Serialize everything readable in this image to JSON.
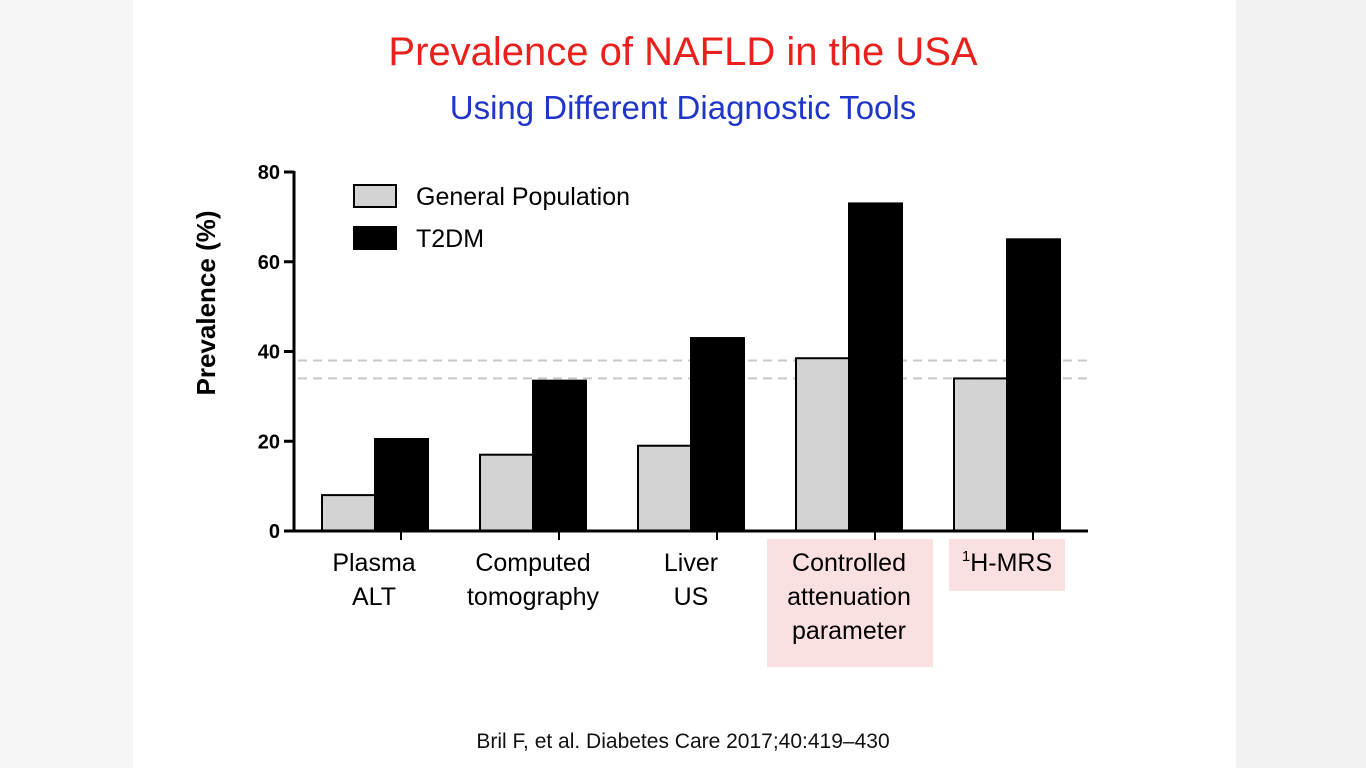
{
  "title": "Prevalence of NAFLD in the USA",
  "subtitle": "Using Different Diagnostic Tools",
  "citation": "Bril F, et al. Diabetes Care 2017;40:419–430",
  "chart_data": {
    "type": "bar",
    "ylabel": "Prevalence (%)",
    "xlabel": "",
    "ylim": [
      0,
      80
    ],
    "yticks": [
      0,
      20,
      40,
      60,
      80
    ],
    "categories": [
      {
        "lines": [
          "Plasma",
          "ALT"
        ],
        "highlight": false
      },
      {
        "lines": [
          "Computed",
          "tomography"
        ],
        "highlight": false
      },
      {
        "lines": [
          "Liver",
          "US"
        ],
        "highlight": false
      },
      {
        "lines": [
          "Controlled",
          "attenuation",
          "parameter"
        ],
        "highlight": true
      },
      {
        "sup": "1",
        "lines": [
          "H-MRS"
        ],
        "highlight": true
      }
    ],
    "series": [
      {
        "name": "General Population",
        "color": "#d3d3d3",
        "values": [
          8,
          17,
          19,
          38.5,
          34
        ]
      },
      {
        "name": "T2DM",
        "color": "#000000",
        "values": [
          20.5,
          33.5,
          43,
          73,
          65
        ]
      }
    ],
    "reference_lines": [
      38,
      34
    ],
    "legend": "top-left",
    "grid": false,
    "highlight_color": "#fbe0e1"
  }
}
